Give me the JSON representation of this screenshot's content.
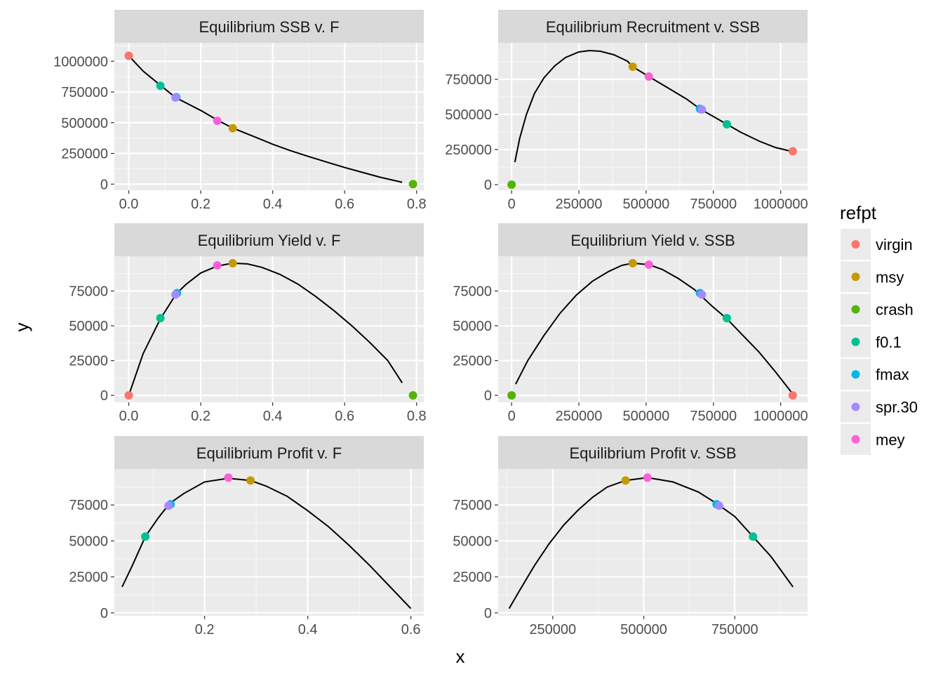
{
  "axis_titles": {
    "x": "x",
    "y": "y"
  },
  "legend": {
    "title": "refpt",
    "items": [
      {
        "label": "virgin",
        "color": "#F8766D"
      },
      {
        "label": "msy",
        "color": "#C49A00"
      },
      {
        "label": "crash",
        "color": "#53B400"
      },
      {
        "label": "f0.1",
        "color": "#00C094"
      },
      {
        "label": "fmax",
        "color": "#00B6EB"
      },
      {
        "label": "spr.30",
        "color": "#A58AFF"
      },
      {
        "label": "mey",
        "color": "#FB61D7"
      }
    ]
  },
  "chart_data": [
    {
      "type": "line",
      "title": "Equilibrium SSB v. F",
      "xlim": [
        -0.04,
        0.82
      ],
      "ylim": [
        -50000,
        1150000
      ],
      "xticks": [
        {
          "v": 0,
          "label": "0.0"
        },
        {
          "v": 0.2,
          "label": "0.2"
        },
        {
          "v": 0.4,
          "label": "0.4"
        },
        {
          "v": 0.6,
          "label": "0.6"
        },
        {
          "v": 0.8,
          "label": "0.8"
        }
      ],
      "yticks": [
        {
          "v": 0,
          "label": "0"
        },
        {
          "v": 250000,
          "label": "250000"
        },
        {
          "v": 500000,
          "label": "500000"
        },
        {
          "v": 750000,
          "label": "750000"
        },
        {
          "v": 1000000,
          "label": "1000000"
        }
      ],
      "line": [
        [
          0,
          1045000
        ],
        [
          0.04,
          920000
        ],
        [
          0.09,
          800000
        ],
        [
          0.13,
          705000
        ],
        [
          0.2,
          600000
        ],
        [
          0.25,
          515000
        ],
        [
          0.29,
          455000
        ],
        [
          0.35,
          385000
        ],
        [
          0.4,
          325000
        ],
        [
          0.45,
          272000
        ],
        [
          0.5,
          225000
        ],
        [
          0.55,
          180000
        ],
        [
          0.6,
          135000
        ],
        [
          0.65,
          95000
        ],
        [
          0.7,
          55000
        ],
        [
          0.76,
          15000
        ]
      ],
      "points": [
        {
          "refpt": "virgin",
          "x": 0,
          "y": 1045000
        },
        {
          "refpt": "f0.1",
          "x": 0.088,
          "y": 800000
        },
        {
          "refpt": "fmax",
          "x": 0.132,
          "y": 708000
        },
        {
          "refpt": "spr.30",
          "x": 0.13,
          "y": 705000
        },
        {
          "refpt": "mey",
          "x": 0.246,
          "y": 515000
        },
        {
          "refpt": "msy",
          "x": 0.289,
          "y": 455000
        },
        {
          "refpt": "crash",
          "x": 0.79,
          "y": 0
        }
      ]
    },
    {
      "type": "line",
      "title": "Equilibrium Recruitment v. SSB",
      "xlim": [
        -50000,
        1100000
      ],
      "ylim": [
        -40000,
        1010000
      ],
      "xticks": [
        {
          "v": 0,
          "label": "0"
        },
        {
          "v": 250000,
          "label": "250000"
        },
        {
          "v": 500000,
          "label": "500000"
        },
        {
          "v": 750000,
          "label": "750000"
        },
        {
          "v": 1000000,
          "label": "1000000"
        }
      ],
      "yticks": [
        {
          "v": 0,
          "label": "0"
        },
        {
          "v": 250000,
          "label": "250000"
        },
        {
          "v": 500000,
          "label": "500000"
        },
        {
          "v": 750000,
          "label": "750000"
        }
      ],
      "line": [
        [
          12000,
          160000
        ],
        [
          30000,
          330000
        ],
        [
          55000,
          500000
        ],
        [
          85000,
          650000
        ],
        [
          120000,
          760000
        ],
        [
          160000,
          845000
        ],
        [
          200000,
          905000
        ],
        [
          250000,
          945000
        ],
        [
          290000,
          955000
        ],
        [
          330000,
          950000
        ],
        [
          380000,
          925000
        ],
        [
          430000,
          880000
        ],
        [
          450000,
          840000
        ],
        [
          510000,
          770000
        ],
        [
          580000,
          690000
        ],
        [
          650000,
          610000
        ],
        [
          700000,
          540000
        ],
        [
          750000,
          485000
        ],
        [
          800000,
          430000
        ],
        [
          850000,
          375000
        ],
        [
          920000,
          310000
        ],
        [
          980000,
          265000
        ],
        [
          1045000,
          235000
        ]
      ],
      "points": [
        {
          "refpt": "crash",
          "x": 0,
          "y": 0
        },
        {
          "refpt": "msy",
          "x": 450000,
          "y": 840000
        },
        {
          "refpt": "mey",
          "x": 510000,
          "y": 770000
        },
        {
          "refpt": "fmax",
          "x": 700000,
          "y": 540000
        },
        {
          "refpt": "spr.30",
          "x": 707000,
          "y": 535000
        },
        {
          "refpt": "f0.1",
          "x": 800000,
          "y": 430000
        },
        {
          "refpt": "virgin",
          "x": 1045000,
          "y": 238000
        }
      ]
    },
    {
      "type": "line",
      "title": "Equilibrium Yield v. F",
      "xlim": [
        -0.04,
        0.82
      ],
      "ylim": [
        -5000,
        100000
      ],
      "xticks": [
        {
          "v": 0,
          "label": "0.0"
        },
        {
          "v": 0.2,
          "label": "0.2"
        },
        {
          "v": 0.4,
          "label": "0.4"
        },
        {
          "v": 0.6,
          "label": "0.6"
        },
        {
          "v": 0.8,
          "label": "0.8"
        }
      ],
      "yticks": [
        {
          "v": 0,
          "label": "0"
        },
        {
          "v": 25000,
          "label": "25000"
        },
        {
          "v": 50000,
          "label": "50000"
        },
        {
          "v": 75000,
          "label": "75000"
        }
      ],
      "line": [
        [
          0,
          0
        ],
        [
          0.04,
          30000
        ],
        [
          0.088,
          55000
        ],
        [
          0.132,
          73000
        ],
        [
          0.16,
          80000
        ],
        [
          0.2,
          88000
        ],
        [
          0.246,
          93000
        ],
        [
          0.289,
          95000
        ],
        [
          0.33,
          94500
        ],
        [
          0.37,
          92000
        ],
        [
          0.42,
          87000
        ],
        [
          0.47,
          80000
        ],
        [
          0.52,
          71000
        ],
        [
          0.57,
          61000
        ],
        [
          0.62,
          50000
        ],
        [
          0.67,
          38000
        ],
        [
          0.72,
          25000
        ],
        [
          0.76,
          9000
        ]
      ],
      "points": [
        {
          "refpt": "virgin",
          "x": 0,
          "y": 0
        },
        {
          "refpt": "f0.1",
          "x": 0.088,
          "y": 55500
        },
        {
          "refpt": "fmax",
          "x": 0.134,
          "y": 73500
        },
        {
          "refpt": "spr.30",
          "x": 0.13,
          "y": 72500
        },
        {
          "refpt": "mey",
          "x": 0.246,
          "y": 93500
        },
        {
          "refpt": "msy",
          "x": 0.289,
          "y": 95000
        },
        {
          "refpt": "crash",
          "x": 0.79,
          "y": 0
        }
      ]
    },
    {
      "type": "line",
      "title": "Equilibrium Yield v. SSB",
      "xlim": [
        -50000,
        1100000
      ],
      "ylim": [
        -5000,
        100000
      ],
      "xticks": [
        {
          "v": 0,
          "label": "0"
        },
        {
          "v": 250000,
          "label": "250000"
        },
        {
          "v": 500000,
          "label": "500000"
        },
        {
          "v": 750000,
          "label": "750000"
        },
        {
          "v": 1000000,
          "label": "1000000"
        }
      ],
      "yticks": [
        {
          "v": 0,
          "label": "0"
        },
        {
          "v": 25000,
          "label": "25000"
        },
        {
          "v": 50000,
          "label": "50000"
        },
        {
          "v": 75000,
          "label": "75000"
        }
      ],
      "line": [
        [
          15000,
          8000
        ],
        [
          60000,
          25000
        ],
        [
          120000,
          43000
        ],
        [
          180000,
          59000
        ],
        [
          240000,
          72000
        ],
        [
          300000,
          82000
        ],
        [
          360000,
          89000
        ],
        [
          410000,
          93500
        ],
        [
          450000,
          95000
        ],
        [
          510000,
          94000
        ],
        [
          560000,
          90500
        ],
        [
          620000,
          84000
        ],
        [
          680000,
          76000
        ],
        [
          740000,
          65000
        ],
        [
          800000,
          55000
        ],
        [
          860000,
          43000
        ],
        [
          920000,
          31000
        ],
        [
          980000,
          17000
        ],
        [
          1045000,
          1000
        ]
      ],
      "points": [
        {
          "refpt": "crash",
          "x": 0,
          "y": 0
        },
        {
          "refpt": "msy",
          "x": 450000,
          "y": 95000
        },
        {
          "refpt": "mey",
          "x": 510000,
          "y": 94000
        },
        {
          "refpt": "fmax",
          "x": 700000,
          "y": 73500
        },
        {
          "refpt": "spr.30",
          "x": 707000,
          "y": 72500
        },
        {
          "refpt": "f0.1",
          "x": 800000,
          "y": 55500
        },
        {
          "refpt": "virgin",
          "x": 1045000,
          "y": 0
        }
      ]
    },
    {
      "type": "line",
      "title": "Equilibrium Profit v. F",
      "xlim": [
        0.025,
        0.625
      ],
      "ylim": [
        -2000,
        100000
      ],
      "xticks": [
        {
          "v": 0.2,
          "label": "0.2"
        },
        {
          "v": 0.4,
          "label": "0.4"
        },
        {
          "v": 0.6,
          "label": "0.6"
        }
      ],
      "yticks": [
        {
          "v": 0,
          "label": "0"
        },
        {
          "v": 25000,
          "label": "25000"
        },
        {
          "v": 50000,
          "label": "50000"
        },
        {
          "v": 75000,
          "label": "75000"
        }
      ],
      "line": [
        [
          0.04,
          18000
        ],
        [
          0.06,
          33000
        ],
        [
          0.085,
          53000
        ],
        [
          0.11,
          66000
        ],
        [
          0.132,
          76000
        ],
        [
          0.16,
          83000
        ],
        [
          0.2,
          91000
        ],
        [
          0.246,
          93500
        ],
        [
          0.289,
          92000
        ],
        [
          0.32,
          88000
        ],
        [
          0.36,
          81000
        ],
        [
          0.4,
          71000
        ],
        [
          0.44,
          60000
        ],
        [
          0.48,
          47000
        ],
        [
          0.52,
          33000
        ],
        [
          0.56,
          18000
        ],
        [
          0.6,
          3000
        ]
      ],
      "points": [
        {
          "refpt": "f0.1",
          "x": 0.085,
          "y": 53000
        },
        {
          "refpt": "fmax",
          "x": 0.134,
          "y": 75500
        },
        {
          "refpt": "spr.30",
          "x": 0.13,
          "y": 74500
        },
        {
          "refpt": "mey",
          "x": 0.246,
          "y": 94000
        },
        {
          "refpt": "msy",
          "x": 0.289,
          "y": 92000
        }
      ]
    },
    {
      "type": "line",
      "title": "Equilibrium Profit v. SSB",
      "xlim": [
        100000,
        950000
      ],
      "ylim": [
        -2000,
        100000
      ],
      "xticks": [
        {
          "v": 250000,
          "label": "250000"
        },
        {
          "v": 500000,
          "label": "500000"
        },
        {
          "v": 750000,
          "label": "750000"
        }
      ],
      "yticks": [
        {
          "v": 0,
          "label": "0"
        },
        {
          "v": 25000,
          "label": "25000"
        },
        {
          "v": 50000,
          "label": "50000"
        },
        {
          "v": 75000,
          "label": "75000"
        }
      ],
      "line": [
        [
          130000,
          3000
        ],
        [
          160000,
          16000
        ],
        [
          200000,
          33000
        ],
        [
          240000,
          48000
        ],
        [
          280000,
          61000
        ],
        [
          320000,
          71500
        ],
        [
          360000,
          80500
        ],
        [
          400000,
          87500
        ],
        [
          450000,
          92000
        ],
        [
          510000,
          94000
        ],
        [
          580000,
          91000
        ],
        [
          650000,
          84000
        ],
        [
          700000,
          76000
        ],
        [
          750000,
          67000
        ],
        [
          800000,
          53000
        ],
        [
          850000,
          39000
        ],
        [
          910000,
          18000
        ]
      ],
      "points": [
        {
          "refpt": "msy",
          "x": 450000,
          "y": 92000
        },
        {
          "refpt": "mey",
          "x": 510000,
          "y": 94000
        },
        {
          "refpt": "fmax",
          "x": 700000,
          "y": 75500
        },
        {
          "refpt": "spr.30",
          "x": 707000,
          "y": 74500
        },
        {
          "refpt": "f0.1",
          "x": 800000,
          "y": 53000
        }
      ]
    }
  ]
}
